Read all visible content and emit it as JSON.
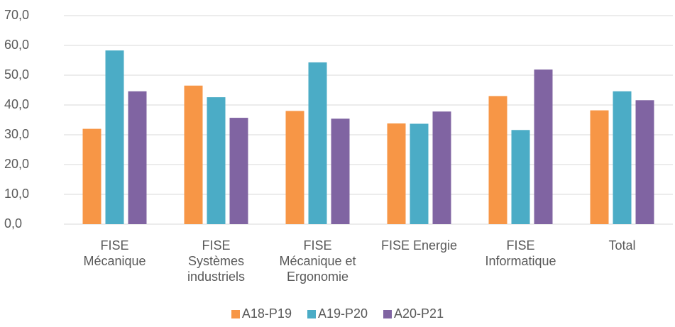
{
  "chart_data": {
    "type": "bar",
    "categories": [
      "FISE\nMécanique",
      "FISE\nSystèmes\nindustriels",
      "FISE\nMécanique et\nErgonomie",
      "FISE Energie",
      "FISE\nInformatique",
      "Total"
    ],
    "series": [
      {
        "name": "A18-P19",
        "color": "#f79646",
        "values": [
          32.0,
          46.5,
          38.0,
          33.8,
          43.0,
          38.2
        ]
      },
      {
        "name": "A19-P20",
        "color": "#4bacc6",
        "values": [
          58.3,
          42.6,
          54.3,
          33.7,
          31.6,
          44.6
        ]
      },
      {
        "name": "A20-P21",
        "color": "#8064a2",
        "values": [
          44.6,
          35.7,
          35.4,
          37.8,
          51.9,
          41.6
        ]
      }
    ],
    "ylim": [
      0,
      70
    ],
    "yticks": [
      {
        "value": 0,
        "label": "0,0"
      },
      {
        "value": 10,
        "label": "10,0"
      },
      {
        "value": 20,
        "label": "20,0"
      },
      {
        "value": 30,
        "label": "30,0"
      },
      {
        "value": 40,
        "label": "40,0"
      },
      {
        "value": 50,
        "label": "50,0"
      },
      {
        "value": 60,
        "label": "60,0"
      },
      {
        "value": 70,
        "label": "70,0"
      }
    ],
    "grid": true,
    "legend": "bottom"
  }
}
